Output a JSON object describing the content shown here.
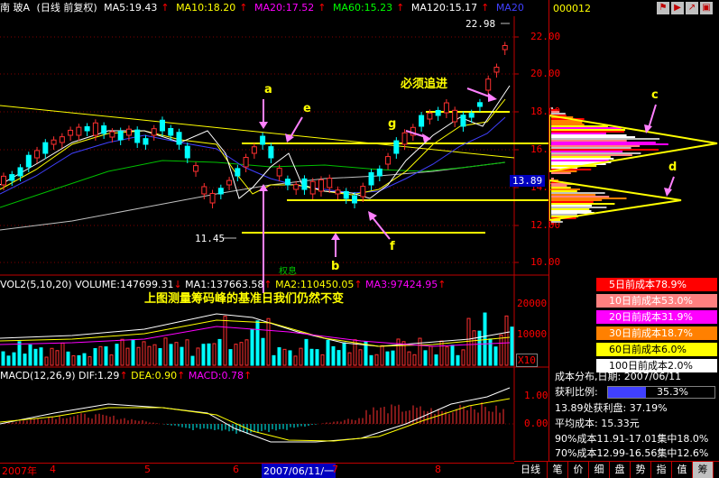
{
  "header": {
    "name": "南  玻A",
    "mode": "(日线 前复权)",
    "ma5": "MA5:19.43",
    "ma10": "MA10:18.20",
    "ma20": "MA20:17.52",
    "ma60": "MA60:15.23",
    "ma120": "MA120:15.17",
    "ma_tag": "MA20",
    "colors": {
      "ma5": "#ffffff",
      "ma10": "#ffff00",
      "ma20": "#ff00ff",
      "ma60": "#00ff00",
      "ma120": "#c0c0c0",
      "ma_tag": "#4040ff"
    }
  },
  "price_axis": [
    "22.00",
    "20.00",
    "18.00",
    "16.00",
    "14.00",
    "12.00",
    "10.00"
  ],
  "current_price": "13.89",
  "high_label": "22.98",
  "low_label": "11.45",
  "annotations": {
    "a": "a",
    "b": "b",
    "c": "c",
    "d": "d",
    "e": "e",
    "f": "f",
    "g": "g",
    "must_follow": "必须追进",
    "bottom_note": "上图测量筹码峰的基准日我们仍然不变",
    "quanxi": "权息"
  },
  "volume": {
    "title": "VOL2(5,10,20)",
    "volume": "VOLUME:147699.31",
    "ma1": "MA1:137663.58",
    "ma2": "MA2:110450.05",
    "ma3": "MA3:97424.95",
    "axis": [
      "20000",
      "10000"
    ],
    "unit": "X10"
  },
  "macd": {
    "title": "MACD(12,26,9)",
    "dif": "DIF:1.29",
    "dea": "DEA:0.90",
    "macd": "MACD:0.78",
    "axis": [
      "1.00",
      "0.00"
    ]
  },
  "date_axis": {
    "year": "2007年",
    "months": [
      "4",
      "5",
      "6",
      "7",
      "8"
    ],
    "cursor_date": "2007/06/11/一"
  },
  "right_panel": {
    "code": "000012",
    "icons": [
      "flag-icon",
      "play-icon",
      "arrow-icon",
      "window-icon"
    ],
    "cost_rows": [
      {
        "label": "5日前成本78.9%",
        "color": "#ff0000"
      },
      {
        "label": "10日前成本53.0%",
        "color": "#ff8080"
      },
      {
        "label": "20日前成本31.9%",
        "color": "#ff00ff"
      },
      {
        "label": "30日前成本18.7%",
        "color": "#ff8000"
      },
      {
        "label": "60日前成本6.0%",
        "color": "#ffff00"
      },
      {
        "label": "100日前成本2.0%",
        "color": "#ffffff"
      }
    ],
    "dist_title": "成本分布,日期: 2007/06/11",
    "profit_label": "获利比例:",
    "profit_value": "35.3%",
    "profit_ratio": 0.353,
    "line1": "13.89处获利盘: 37.19%",
    "line2": "平均成本: 15.33元",
    "line3": "90%成本11.91-17.01集中18.0%",
    "line4": "70%成本12.99-16.56集中12.6%"
  },
  "tabs": [
    "日线",
    "笔",
    "价",
    "细",
    "盘",
    "势",
    "指",
    "值",
    "筹"
  ]
}
